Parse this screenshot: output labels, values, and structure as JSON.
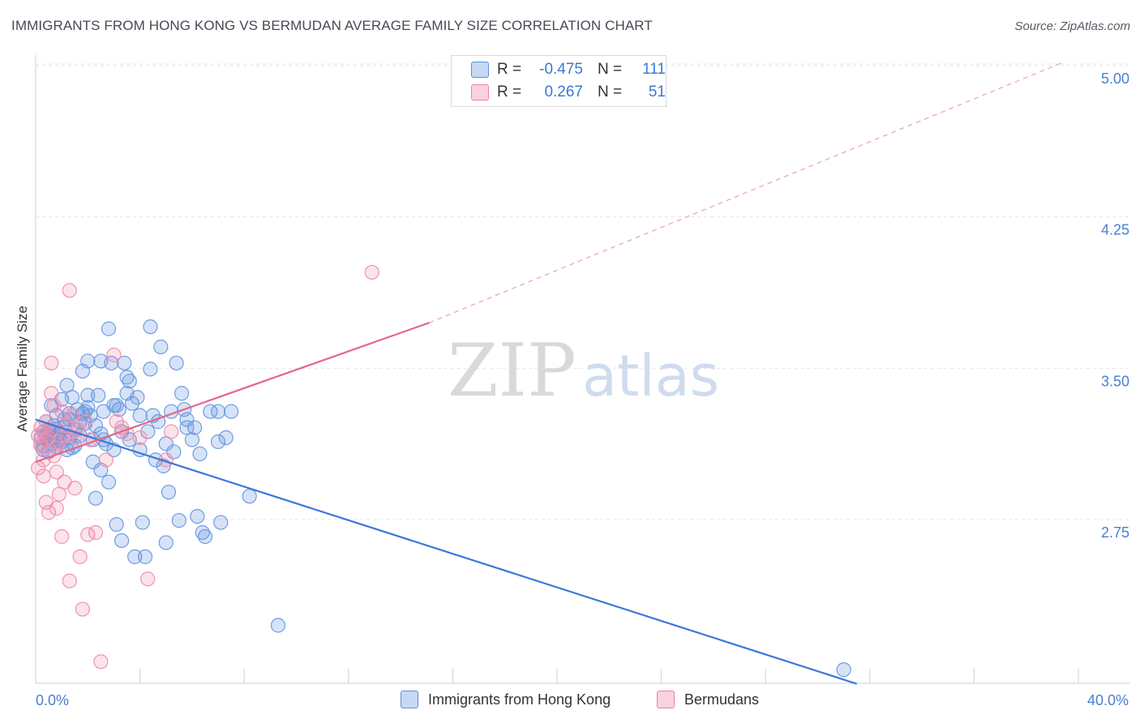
{
  "header": {
    "title": "IMMIGRANTS FROM HONG KONG VS BERMUDAN AVERAGE FAMILY SIZE CORRELATION CHART",
    "source": "Source: ZipAtlas.com"
  },
  "watermark": {
    "zip": "ZIP",
    "atlas": "atlas"
  },
  "legend": {
    "rows": [
      {
        "r_label": "R =",
        "r_value": "-0.475",
        "n_label": "N =",
        "n_value": "111",
        "color": "#5b8fe0"
      },
      {
        "r_label": "R =",
        "r_value": "0.267",
        "n_label": "N =",
        "n_value": "51",
        "color": "#ee7fa0"
      }
    ]
  },
  "bottom_legend": [
    {
      "label": "Immigrants from Hong Kong",
      "color": "#5b8fe0"
    },
    {
      "label": "Bermudans",
      "color": "#ee7fa0"
    }
  ],
  "chart_data": {
    "type": "scatter",
    "title": "IMMIGRANTS FROM HONG KONG VS BERMUDAN AVERAGE FAMILY SIZE CORRELATION CHART",
    "xlabel": "",
    "ylabel": "Average Family Size",
    "xlim": [
      0,
      40
    ],
    "ylim": [
      2.0,
      5.1
    ],
    "x_tick_labels": {
      "left": "0.0%",
      "right": "40.0%"
    },
    "y_ticks": [
      {
        "value": 5.0,
        "label": "5.00"
      },
      {
        "value": 4.25,
        "label": "4.25"
      },
      {
        "value": 3.5,
        "label": "3.50"
      },
      {
        "value": 2.75,
        "label": "2.75"
      }
    ],
    "series": [
      {
        "name": "Immigrants from Hong Kong",
        "color": "#5b8fe0",
        "trend": {
          "x0": 0,
          "y0": 3.31,
          "x1": 31.5,
          "y1": 2.0
        },
        "points": [
          [
            0.2,
            3.22
          ],
          [
            0.3,
            3.25
          ],
          [
            0.3,
            3.18
          ],
          [
            0.4,
            3.3
          ],
          [
            0.4,
            3.21
          ],
          [
            0.5,
            3.26
          ],
          [
            0.5,
            3.15
          ],
          [
            0.6,
            3.38
          ],
          [
            0.6,
            3.19
          ],
          [
            0.7,
            3.28
          ],
          [
            0.7,
            3.22
          ],
          [
            0.8,
            3.33
          ],
          [
            0.8,
            3.17
          ],
          [
            0.9,
            3.24
          ],
          [
            1.0,
            3.41
          ],
          [
            1.0,
            3.2
          ],
          [
            1.1,
            3.31
          ],
          [
            1.1,
            3.27
          ],
          [
            1.2,
            3.48
          ],
          [
            1.2,
            3.16
          ],
          [
            1.3,
            3.34
          ],
          [
            1.3,
            3.22
          ],
          [
            1.4,
            3.42
          ],
          [
            1.5,
            3.26
          ],
          [
            1.5,
            3.18
          ],
          [
            1.6,
            3.36
          ],
          [
            1.7,
            3.3
          ],
          [
            1.7,
            3.23
          ],
          [
            1.8,
            3.55
          ],
          [
            1.8,
            3.34
          ],
          [
            1.9,
            3.29
          ],
          [
            2.0,
            3.6
          ],
          [
            2.0,
            3.37
          ],
          [
            2.1,
            3.33
          ],
          [
            2.2,
            3.21
          ],
          [
            2.2,
            3.1
          ],
          [
            2.3,
            3.28
          ],
          [
            2.3,
            2.92
          ],
          [
            2.4,
            3.43
          ],
          [
            2.5,
            3.24
          ],
          [
            2.5,
            3.06
          ],
          [
            2.6,
            3.35
          ],
          [
            2.7,
            3.19
          ],
          [
            2.8,
            3.76
          ],
          [
            2.8,
            3.0
          ],
          [
            2.9,
            3.59
          ],
          [
            3.0,
            3.38
          ],
          [
            3.0,
            3.16
          ],
          [
            3.1,
            2.79
          ],
          [
            3.2,
            3.36
          ],
          [
            3.3,
            3.25
          ],
          [
            3.3,
            2.71
          ],
          [
            3.4,
            3.59
          ],
          [
            3.5,
            3.52
          ],
          [
            3.5,
            3.44
          ],
          [
            3.6,
            3.21
          ],
          [
            3.7,
            3.39
          ],
          [
            3.8,
            2.63
          ],
          [
            3.9,
            3.42
          ],
          [
            4.0,
            3.33
          ],
          [
            4.0,
            3.16
          ],
          [
            4.1,
            2.8
          ],
          [
            4.2,
            2.63
          ],
          [
            4.3,
            3.25
          ],
          [
            4.4,
            3.56
          ],
          [
            4.5,
            3.33
          ],
          [
            4.6,
            3.11
          ],
          [
            4.7,
            3.3
          ],
          [
            4.8,
            3.67
          ],
          [
            4.9,
            3.08
          ],
          [
            5.0,
            3.19
          ],
          [
            5.0,
            2.7
          ],
          [
            5.1,
            2.95
          ],
          [
            5.2,
            3.35
          ],
          [
            5.3,
            3.15
          ],
          [
            5.4,
            3.59
          ],
          [
            5.5,
            2.81
          ],
          [
            5.6,
            3.44
          ],
          [
            5.7,
            3.36
          ],
          [
            5.8,
            3.31
          ],
          [
            6.0,
            3.21
          ],
          [
            6.2,
            2.83
          ],
          [
            6.3,
            3.14
          ],
          [
            6.4,
            2.75
          ],
          [
            6.5,
            2.73
          ],
          [
            6.7,
            3.35
          ],
          [
            7.0,
            3.2
          ],
          [
            7.1,
            2.8
          ],
          [
            7.3,
            3.22
          ],
          [
            7.5,
            3.35
          ],
          [
            6.1,
            3.27
          ],
          [
            4.4,
            3.77
          ],
          [
            2.5,
            3.6
          ],
          [
            3.6,
            3.5
          ],
          [
            1.9,
            3.35
          ],
          [
            0.9,
            3.21
          ],
          [
            1.4,
            3.17
          ],
          [
            2.6,
            3.21
          ],
          [
            0.5,
            3.21
          ],
          [
            0.6,
            3.25
          ],
          [
            1.1,
            3.22
          ],
          [
            0.8,
            3.26
          ],
          [
            2.0,
            3.43
          ],
          [
            3.1,
            3.38
          ],
          [
            5.8,
            3.27
          ],
          [
            1.3,
            3.31
          ],
          [
            0.4,
            3.23
          ],
          [
            0.3,
            3.16
          ],
          [
            7.0,
            3.35
          ],
          [
            8.2,
            2.93
          ],
          [
            9.3,
            2.29
          ],
          [
            31.0,
            2.07
          ]
        ]
      },
      {
        "name": "Bermudans",
        "color": "#ee7fa0",
        "trend": {
          "x0": 0,
          "y0": 3.1,
          "x1": 15.1,
          "y1": 3.79,
          "dash_to_x": 39.4,
          "dash_to_y": 5.08
        },
        "points": [
          [
            0.1,
            3.23
          ],
          [
            0.1,
            3.07
          ],
          [
            0.2,
            3.27
          ],
          [
            0.2,
            3.19
          ],
          [
            0.3,
            3.25
          ],
          [
            0.3,
            3.03
          ],
          [
            0.4,
            3.3
          ],
          [
            0.4,
            2.9
          ],
          [
            0.5,
            3.22
          ],
          [
            0.5,
            2.85
          ],
          [
            0.6,
            3.59
          ],
          [
            0.6,
            3.44
          ],
          [
            0.7,
            3.38
          ],
          [
            0.7,
            3.13
          ],
          [
            0.8,
            3.05
          ],
          [
            0.8,
            2.87
          ],
          [
            0.9,
            3.2
          ],
          [
            0.9,
            2.94
          ],
          [
            1.0,
            3.35
          ],
          [
            1.0,
            2.73
          ],
          [
            1.1,
            3.0
          ],
          [
            1.2,
            3.23
          ],
          [
            1.3,
            3.95
          ],
          [
            1.3,
            2.51
          ],
          [
            1.4,
            3.33
          ],
          [
            1.5,
            3.22
          ],
          [
            1.5,
            2.97
          ],
          [
            1.6,
            3.26
          ],
          [
            1.7,
            2.63
          ],
          [
            1.8,
            2.37
          ],
          [
            1.9,
            3.3
          ],
          [
            2.0,
            2.74
          ],
          [
            2.1,
            3.21
          ],
          [
            2.3,
            2.75
          ],
          [
            2.5,
            2.11
          ],
          [
            2.7,
            3.11
          ],
          [
            3.0,
            3.63
          ],
          [
            3.1,
            3.3
          ],
          [
            3.3,
            3.27
          ],
          [
            3.5,
            3.24
          ],
          [
            4.0,
            3.22
          ],
          [
            4.3,
            2.52
          ],
          [
            5.0,
            3.11
          ],
          [
            5.2,
            3.25
          ],
          [
            0.2,
            3.18
          ],
          [
            0.4,
            3.21
          ],
          [
            0.6,
            3.26
          ],
          [
            0.8,
            3.17
          ],
          [
            0.3,
            3.11
          ],
          [
            12.9,
            4.04
          ],
          [
            1.2,
            3.28
          ]
        ]
      }
    ]
  }
}
